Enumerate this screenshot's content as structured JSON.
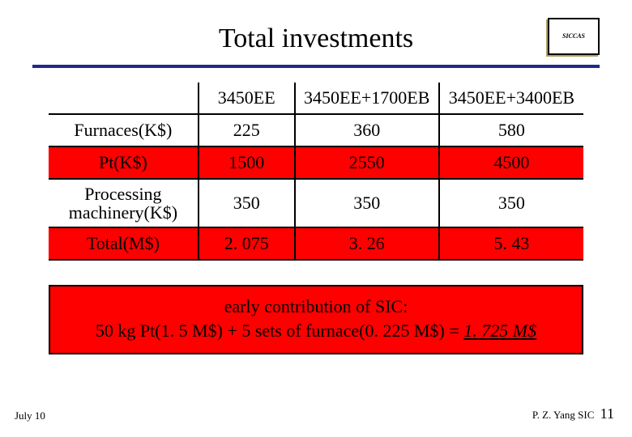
{
  "title": "Total investments",
  "logo_text": "SICCAS",
  "underline_color": "#1d2a8c",
  "highlight_color": "#ff0000",
  "table": {
    "columns": [
      "",
      "3450EE",
      "3450EE+1700EB",
      "3450EE+3400EB"
    ],
    "rows": [
      {
        "label": "Furnaces(K$)",
        "vals": [
          "225",
          "360",
          "580"
        ],
        "highlight": false
      },
      {
        "label": "Pt(K$)",
        "vals": [
          "1500",
          "2550",
          "4500"
        ],
        "highlight": true
      },
      {
        "label_html": "Processing\nmachinery(K$)",
        "vals": [
          "350",
          "350",
          "350"
        ],
        "highlight": false
      },
      {
        "label": "Total(M$)",
        "vals": [
          "2. 075",
          "3. 26",
          "5. 43"
        ],
        "highlight": true
      }
    ],
    "col_widths_pct": [
      28,
      18,
      27,
      27
    ],
    "border_color": "#000000",
    "font_size_pt": 22
  },
  "callout": {
    "line1": "early contribution of SIC:",
    "line2_prefix": "50 kg Pt(1. 5 M$) + 5 sets of furnace(0. 225 M$) = ",
    "line2_sum": "1. 725 M$",
    "background": "#ff0000",
    "border_color": "#000000"
  },
  "footer": {
    "left": "July 10",
    "right_text": "P. Z. Yang SIC",
    "page_number": "11"
  }
}
